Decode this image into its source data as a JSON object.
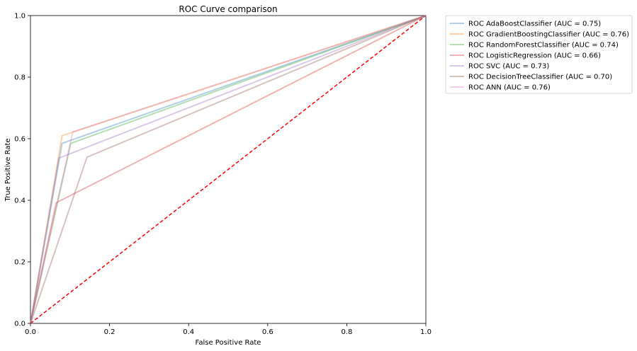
{
  "chart_data": {
    "type": "line",
    "title": "ROC Curve comparison",
    "xlabel": "False Positive Rate",
    "ylabel": "True Positive Rate",
    "xlim": [
      0,
      1
    ],
    "ylim": [
      0,
      1
    ],
    "xticks": [
      "0.0",
      "0.2",
      "0.4",
      "0.6",
      "0.8",
      "1.0"
    ],
    "yticks": [
      "0.0",
      "0.2",
      "0.4",
      "0.6",
      "0.8",
      "1.0"
    ],
    "grid": false,
    "legend_position": "outside-top-right",
    "series": [
      {
        "name": "ROC AdaBoostClassifier (AUC = 0.75)",
        "color": "#1f77b4",
        "x": [
          0,
          0.08,
          1
        ],
        "y": [
          0,
          0.585,
          1
        ]
      },
      {
        "name": "ROC GradientBoostingClassifier (AUC = 0.76)",
        "color": "#ff7f0e",
        "x": [
          0,
          0.08,
          1
        ],
        "y": [
          0,
          0.61,
          1
        ]
      },
      {
        "name": "ROC RandomForestClassifier (AUC = 0.74)",
        "color": "#2ca02c",
        "x": [
          0,
          0.102,
          1
        ],
        "y": [
          0,
          0.585,
          1
        ]
      },
      {
        "name": "ROC LogisticRegression (AUC = 0.66)",
        "color": "#d62728",
        "x": [
          0,
          0.065,
          1
        ],
        "y": [
          0,
          0.392,
          1
        ]
      },
      {
        "name": "ROC SVC (AUC = 0.73)",
        "color": "#9467bd",
        "x": [
          0,
          0.072,
          1
        ],
        "y": [
          0,
          0.537,
          1
        ]
      },
      {
        "name": "ROC DecisionTreeClassifier (AUC = 0.70)",
        "color": "#8c564b",
        "x": [
          0,
          0.143,
          1
        ],
        "y": [
          0,
          0.54,
          1
        ]
      },
      {
        "name": "ROC ANN (AUC = 0.76)",
        "color": "#e377c2",
        "x": [
          0,
          0.107,
          1
        ],
        "y": [
          0,
          0.622,
          1
        ]
      }
    ],
    "reference_line": {
      "color": "#ff0000",
      "style": "dashed",
      "x": [
        0,
        1
      ],
      "y": [
        0,
        1
      ]
    }
  }
}
